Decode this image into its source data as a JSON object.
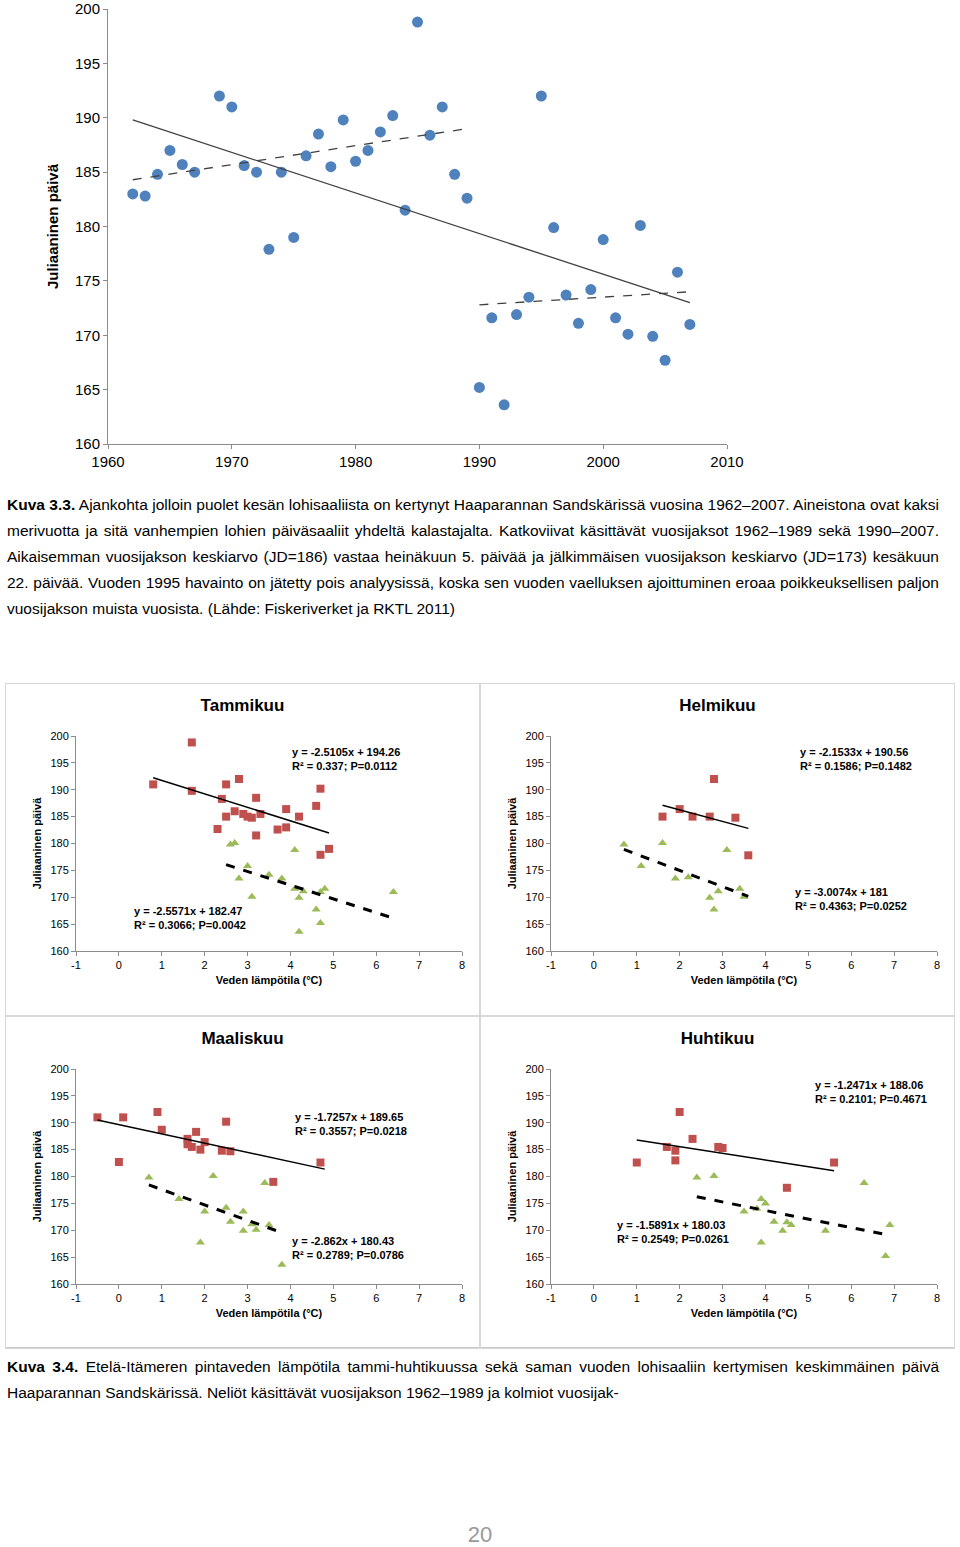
{
  "chart_data": [
    {
      "type": "scatter",
      "y_label": "Juliaaninen päivä",
      "xlim": [
        1960,
        2010
      ],
      "xticks": [
        1960,
        1970,
        1980,
        1990,
        2000,
        2010
      ],
      "ylim": [
        160,
        200
      ],
      "yticks": [
        160,
        165,
        170,
        175,
        180,
        185,
        190,
        195,
        200
      ],
      "grid": false,
      "series": [
        {
          "type": "scatter",
          "marker": "circle",
          "color": "#4f81bd",
          "x": [
            1962,
            1963,
            1964,
            1965,
            1966,
            1967,
            1969,
            1970,
            1971,
            1972,
            1973,
            1974,
            1975,
            1976,
            1977,
            1978,
            1979,
            1980,
            1981,
            1982,
            1983,
            1984,
            1985,
            1986,
            1987,
            1988,
            1989,
            1990,
            1991,
            1992,
            1993,
            1994,
            1995,
            1996,
            1997,
            1998,
            1999,
            2000,
            2001,
            2002,
            2003,
            2004,
            2005,
            2006,
            2007
          ],
          "values": [
            183,
            182.8,
            184.8,
            187,
            185.7,
            185,
            192,
            191,
            185.6,
            185,
            177.9,
            185,
            179,
            186.5,
            188.5,
            185.5,
            189.8,
            186,
            187,
            188.7,
            190.2,
            181.5,
            198.8,
            188.4,
            191,
            184.8,
            182.6,
            165.2,
            171.6,
            163.6,
            171.9,
            173.5,
            192,
            179.9,
            173.7,
            171.1,
            174.2,
            178.8,
            171.6,
            170.1,
            180.1,
            169.9,
            167.7,
            175.8,
            171
          ]
        },
        {
          "type": "line",
          "line_style": "solid",
          "color": "#404040",
          "x": [
            1962,
            2007
          ],
          "values": [
            189.8,
            173
          ]
        },
        {
          "type": "line",
          "line_style": "dashed",
          "color": "#404040",
          "x": [
            1962,
            1989
          ],
          "values": [
            184.3,
            189
          ]
        },
        {
          "type": "line",
          "line_style": "dashed",
          "color": "#404040",
          "x": [
            1990,
            2007
          ],
          "values": [
            172.8,
            174
          ]
        }
      ]
    },
    {
      "type": "scatter",
      "title": "Tammikuu",
      "x_label": "Veden lämpötila (°C)",
      "y_label": "Juliaaninen päivä",
      "xlim": [
        -1,
        8
      ],
      "xticks": [
        -1,
        0,
        1,
        2,
        3,
        4,
        5,
        6,
        7,
        8
      ],
      "ylim": [
        160,
        200
      ],
      "yticks": [
        160,
        165,
        170,
        175,
        180,
        185,
        190,
        195,
        200
      ],
      "grid": false,
      "series": [
        {
          "type": "scatter",
          "marker": "square",
          "color": "#c0504d",
          "x": [
            0.8,
            1.7,
            1.7,
            2.3,
            2.4,
            2.5,
            2.5,
            2.7,
            2.8,
            2.9,
            3.0,
            3.1,
            3.2,
            3.2,
            3.3,
            3.7,
            3.9,
            3.9,
            4.2,
            4.6,
            4.7,
            4.7,
            4.9
          ],
          "values": [
            191,
            198.8,
            189.8,
            182.7,
            188.3,
            191,
            185,
            186,
            192,
            185.5,
            185,
            184.8,
            181.5,
            188.5,
            185.5,
            182.6,
            186.4,
            183,
            185,
            187,
            190.2,
            177.9,
            179
          ]
        },
        {
          "type": "scatter",
          "marker": "triangle",
          "color": "#9bbb59",
          "x": [
            2.6,
            2.7,
            2.8,
            3.0,
            3.1,
            3.5,
            3.8,
            4.1,
            4.1,
            4.2,
            4.2,
            4.3,
            4.6,
            4.7,
            4.7,
            4.8,
            6.4
          ],
          "values": [
            179.8,
            180.1,
            173.5,
            175.8,
            170.1,
            174.2,
            173.5,
            178.8,
            171.6,
            163.6,
            169.9,
            171.1,
            167.7,
            165.2,
            171,
            171.6,
            171
          ]
        },
        {
          "type": "line",
          "line_style": "solid",
          "color": "#000000",
          "x": [
            0.8,
            4.9
          ],
          "values": [
            192.25,
            181.96
          ]
        },
        {
          "type": "line",
          "line_style": "dashed",
          "color": "#000000",
          "x": [
            2.5,
            6.4
          ],
          "values": [
            176.08,
            166.11
          ]
        }
      ],
      "annotations": [
        {
          "x": 4.0,
          "y": 198.5,
          "text": [
            "y = -2.5105x + 194.26",
            "R² = 0.337; P=0.0112"
          ]
        },
        {
          "x": 0.3,
          "y": 169,
          "text": [
            "y = -2.5571x + 182.47",
            "R² = 0.3066; P=0.0042"
          ]
        }
      ]
    },
    {
      "type": "scatter",
      "title": "Helmikuu",
      "x_label": "Veden lämpötila (°C)",
      "y_label": "Juliaaninen päivä",
      "xlim": [
        -1,
        8
      ],
      "xticks": [
        -1,
        0,
        1,
        2,
        3,
        4,
        5,
        6,
        7,
        8
      ],
      "ylim": [
        160,
        200
      ],
      "yticks": [
        160,
        165,
        170,
        175,
        180,
        185,
        190,
        195,
        200
      ],
      "grid": false,
      "series": [
        {
          "type": "scatter",
          "marker": "square",
          "color": "#c0504d",
          "x": [
            1.6,
            2.0,
            2.3,
            2.7,
            2.8,
            3.3,
            3.6
          ],
          "values": [
            185,
            186.4,
            185,
            185,
            192,
            184.8,
            177.8
          ]
        },
        {
          "type": "scatter",
          "marker": "triangle",
          "color": "#9bbb59",
          "x": [
            0.7,
            1.1,
            1.6,
            1.9,
            2.2,
            2.7,
            2.8,
            2.9,
            3.1,
            3.4,
            3.5
          ],
          "values": [
            179.8,
            175.8,
            180.1,
            173.5,
            173.7,
            169.9,
            167.7,
            171.1,
            178.8,
            171.6,
            170.1
          ]
        },
        {
          "type": "line",
          "line_style": "solid",
          "color": "#000000",
          "x": [
            1.6,
            3.6
          ],
          "values": [
            187.11,
            182.81
          ]
        },
        {
          "type": "line",
          "line_style": "dashed",
          "color": "#000000",
          "x": [
            0.7,
            3.6
          ],
          "values": [
            178.89,
            170.17
          ]
        }
      ],
      "annotations": [
        {
          "x": 4.75,
          "y": 198.5,
          "text": [
            "y = -2.1533x + 190.56",
            "R² = 0.1586; P=0.1482"
          ]
        },
        {
          "x": 4.65,
          "y": 172.5,
          "text": [
            "y = -3.0074x + 181",
            "R² = 0.4363; P=0.0252"
          ]
        }
      ]
    },
    {
      "type": "scatter",
      "title": "Maaliskuu",
      "x_label": "Veden lämpötila (°C)",
      "y_label": "Juliaaninen päivä",
      "xlim": [
        -1,
        8
      ],
      "xticks": [
        -1,
        0,
        1,
        2,
        3,
        4,
        5,
        6,
        7,
        8
      ],
      "ylim": [
        160,
        200
      ],
      "yticks": [
        160,
        165,
        170,
        175,
        180,
        185,
        190,
        195,
        200
      ],
      "grid": false,
      "series": [
        {
          "type": "scatter",
          "marker": "square",
          "color": "#c0504d",
          "x": [
            -0.5,
            0.0,
            0.1,
            0.9,
            1.0,
            1.6,
            1.6,
            1.7,
            1.8,
            1.9,
            2.0,
            2.4,
            2.5,
            2.6,
            3.6,
            4.7
          ],
          "values": [
            191,
            182.7,
            191,
            192,
            188.7,
            187,
            186,
            185.5,
            188.3,
            185,
            186.4,
            184.8,
            190.2,
            184.7,
            179,
            182.6
          ]
        },
        {
          "type": "scatter",
          "marker": "triangle",
          "color": "#9bbb59",
          "x": [
            0.7,
            1.4,
            1.9,
            2.0,
            2.2,
            2.5,
            2.6,
            2.9,
            2.9,
            3.1,
            3.2,
            3.4,
            3.5,
            3.8
          ],
          "values": [
            179.8,
            175.8,
            167.7,
            173.5,
            180.1,
            174.2,
            171.6,
            173.5,
            169.9,
            171.1,
            170.1,
            178.8,
            171,
            163.6
          ]
        },
        {
          "type": "line",
          "line_style": "solid",
          "color": "#000000",
          "x": [
            -0.5,
            4.8
          ],
          "values": [
            190.51,
            181.37
          ]
        },
        {
          "type": "line",
          "line_style": "dashed",
          "color": "#000000",
          "x": [
            0.7,
            3.7
          ],
          "values": [
            178.43,
            169.84
          ]
        }
      ],
      "annotations": [
        {
          "x": 4.05,
          "y": 192.5,
          "text": [
            "y = -1.7257x + 189.65",
            "R² = 0.3557; P=0.0218"
          ]
        },
        {
          "x": 4.0,
          "y": 169.5,
          "text": [
            "y = -2.862x + 180.43",
            "R² = 0.2789; P=0.0786"
          ]
        }
      ]
    },
    {
      "type": "scatter",
      "title": "Huhtikuu",
      "x_label": "Veden lämpötila (°C)",
      "y_label": "Juliaaninen päivä",
      "xlim": [
        -1,
        8
      ],
      "xticks": [
        -1,
        0,
        1,
        2,
        3,
        4,
        5,
        6,
        7,
        8
      ],
      "ylim": [
        160,
        200
      ],
      "yticks": [
        160,
        165,
        170,
        175,
        180,
        185,
        190,
        195,
        200
      ],
      "grid": false,
      "series": [
        {
          "type": "scatter",
          "marker": "square",
          "color": "#c0504d",
          "x": [
            1.0,
            1.7,
            1.9,
            1.9,
            2.0,
            2.3,
            2.9,
            3.0,
            4.5,
            5.6
          ],
          "values": [
            182.6,
            185.5,
            184.8,
            183,
            192,
            187,
            185.5,
            185.3,
            177.9,
            182.6
          ]
        },
        {
          "type": "scatter",
          "marker": "triangle",
          "color": "#9bbb59",
          "x": [
            2.4,
            2.8,
            3.5,
            3.8,
            3.9,
            3.9,
            4.0,
            4.2,
            4.4,
            4.5,
            4.6,
            5.4,
            6.3,
            6.8,
            6.9
          ],
          "values": [
            179.8,
            180.1,
            173.5,
            174,
            167.7,
            175.8,
            175,
            171.6,
            169.9,
            171.5,
            171,
            169.9,
            178.8,
            165.2,
            171
          ]
        },
        {
          "type": "line",
          "line_style": "solid",
          "color": "#000000",
          "x": [
            1.0,
            5.6
          ],
          "values": [
            186.81,
            181.08
          ]
        },
        {
          "type": "line",
          "line_style": "dashed",
          "color": "#000000",
          "x": [
            2.4,
            6.9
          ],
          "values": [
            176.22,
            169.06
          ]
        }
      ],
      "annotations": [
        {
          "x": 5.1,
          "y": 198.5,
          "text": [
            "y = -1.2471x + 188.06",
            "R² = 0.2101; P=0.4671"
          ]
        },
        {
          "x": 0.5,
          "y": 172.5,
          "text": [
            "y = -1.5891x + 180.03",
            "R² = 0.2549; P=0.0261"
          ]
        }
      ]
    }
  ],
  "captions": [
    {
      "label": "Kuva 3.3.",
      "text": "Ajankohta jolloin puolet kesän lohisaaliista on kertynyt Haaparannan Sandskärissä vuosina 1962–2007. Aineistona ovat kaksi merivuotta ja sitä vanhempien lohien päiväsaaliit yhdeltä kalastajalta. Katkoviivat käsittävät vuosijaksot 1962–1989 sekä 1990–2007. Aikaisemman vuosijakson keskiarvo (JD=186) vastaa heinäkuun 5. päivää ja jälkimmäisen vuosijakson keskiarvo (JD=173) kesäkuun 22. päivää. Vuoden 1995 havainto on jätetty pois analyysissä, koska sen vuoden vaelluksen ajoittuminen eroaa poikkeuksellisen paljon vuosijakson muista vuosista. (Lähde: Fiskeriverket ja RKTL 2011)"
    },
    {
      "label": "Kuva 3.4.",
      "text": "Etelä-Itämeren pintaveden lämpötila tammi-huhtikuussa sekä saman vuoden lohisaaliin kertymisen keskimmäinen päivä Haaparannan Sandskärissä. Neliöt käsittävät vuosijakson 1962–1989 ja kolmiot vuosijak-"
    }
  ],
  "page_number": "20"
}
